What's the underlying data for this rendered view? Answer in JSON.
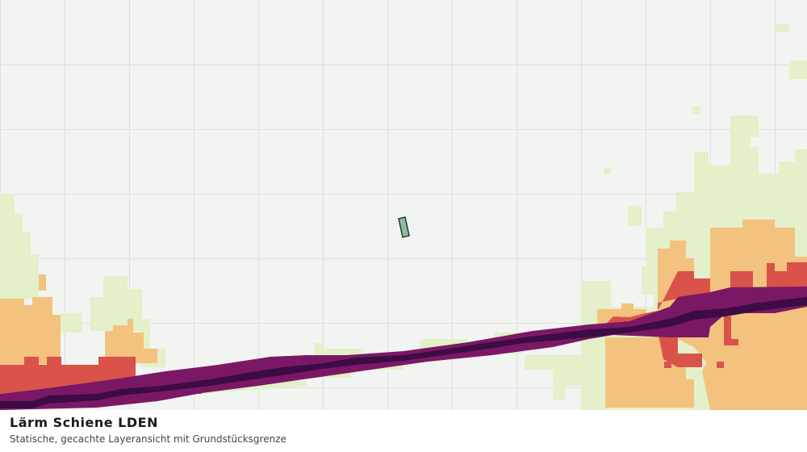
{
  "legend": {
    "title": "Lärm Schiene LDEN",
    "subtitle": "Statische, gecachte Layeransicht mit Grundstücksgrenze"
  }
}
